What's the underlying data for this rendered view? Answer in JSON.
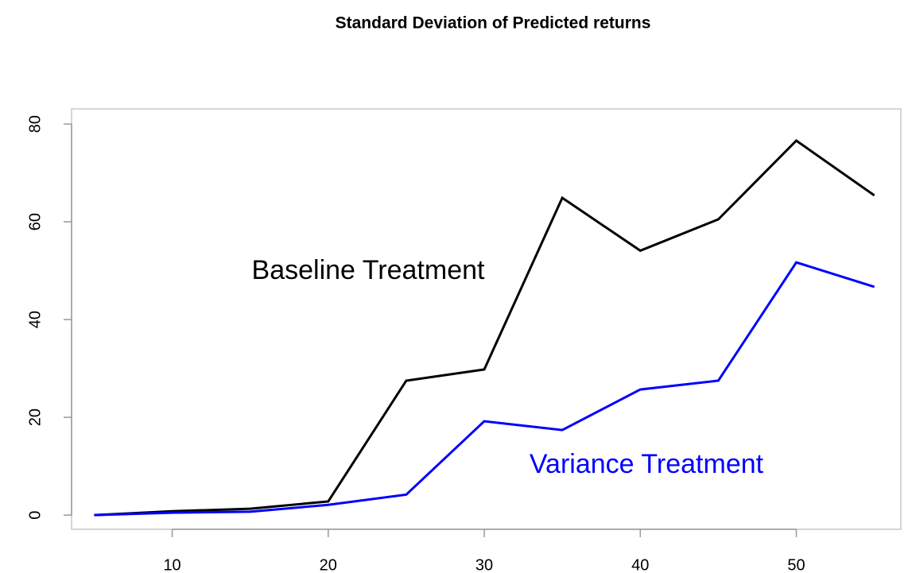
{
  "chart_data": {
    "type": "line",
    "title": "Standard Deviation of Predicted returns",
    "x": [
      5,
      10,
      15,
      20,
      25,
      30,
      35,
      40,
      45,
      50,
      55
    ],
    "series": [
      {
        "name": "Baseline Treatment",
        "color": "#000000",
        "values": [
          0,
          0.8,
          1.3,
          2.8,
          27.5,
          29.8,
          64.9,
          54.1,
          60.5,
          76.6,
          65.4
        ]
      },
      {
        "name": "Variance Treatment",
        "color": "#0000ff",
        "values": [
          0,
          0.5,
          0.7,
          2.1,
          4.2,
          19.2,
          17.4,
          25.7,
          27.5,
          51.7,
          46.7
        ]
      }
    ],
    "xlim": [
      3.55,
      56.7
    ],
    "ylim": [
      -2.9,
      83.1
    ],
    "xticks": [
      10,
      20,
      30,
      40,
      50
    ],
    "yticks": [
      0,
      20,
      40,
      60,
      80
    ]
  }
}
